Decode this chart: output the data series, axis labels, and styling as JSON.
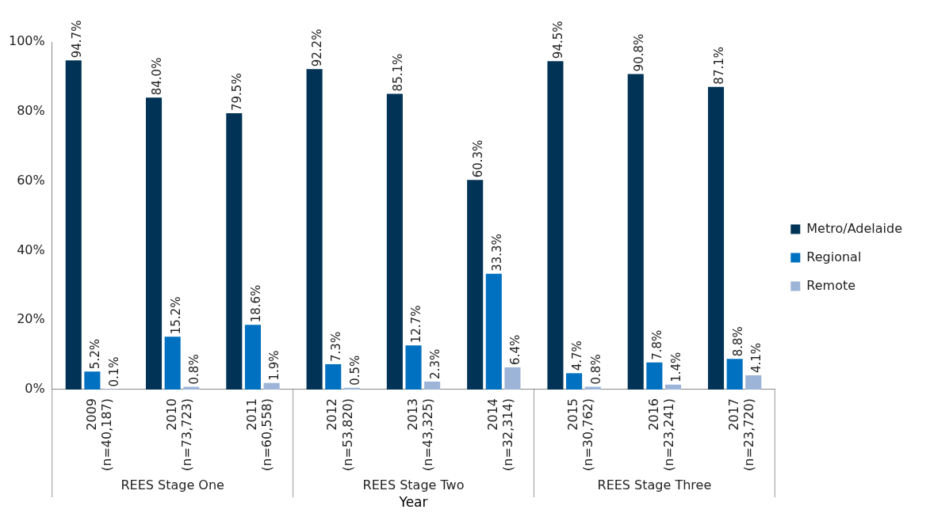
{
  "chart_data": {
    "type": "bar",
    "xlabel": "Year",
    "categories": [
      "2009\n(n=40,187)",
      "2010\n(n=73,723)",
      "2011\n(n=60,558)",
      "2012\n(n=53,820)",
      "2013\n(n=43,325)",
      "2014\n(n=32,314)",
      "2015\n(n=30,762)",
      "2016\n(n=23,241)",
      "2017\n(n=23,720)"
    ],
    "series": [
      {
        "name": "Metro/Adelaide",
        "color": "#003356",
        "values": [
          94.7,
          84.0,
          79.5,
          92.2,
          85.1,
          60.3,
          94.5,
          90.8,
          87.1
        ],
        "value_labels": [
          "94.7%",
          "84.0%",
          "79.5%",
          "92.2%",
          "85.1%",
          "60.3%",
          "94.5%",
          "90.8%",
          "87.1%"
        ]
      },
      {
        "name": "Regional",
        "color": "#0070c0",
        "values": [
          5.2,
          15.2,
          18.6,
          7.3,
          12.7,
          33.3,
          4.7,
          7.8,
          8.8
        ],
        "value_labels": [
          "5.2%",
          "15.2%",
          "18.6%",
          "7.3%",
          "12.7%",
          "33.3%",
          "4.7%",
          "7.8%",
          "8.8%"
        ]
      },
      {
        "name": "Remote",
        "color": "#9cb4d8",
        "values": [
          0.1,
          0.8,
          1.9,
          0.5,
          2.3,
          6.4,
          0.8,
          1.4,
          4.1
        ],
        "value_labels": [
          "0.1%",
          "0.8%",
          "1.9%",
          "0.5%",
          "2.3%",
          "6.4%",
          "0.8%",
          "1.4%",
          "4.1%"
        ]
      }
    ],
    "ylim": [
      0,
      100
    ],
    "yticks": [
      {
        "value": 0,
        "label": "0%"
      },
      {
        "value": 20,
        "label": "20%"
      },
      {
        "value": 40,
        "label": "40%"
      },
      {
        "value": 60,
        "label": "60%"
      },
      {
        "value": 80,
        "label": "80%"
      },
      {
        "value": 100,
        "label": "100%"
      }
    ],
    "grid": false,
    "legend": "right",
    "annotations": [
      "REES Stage One",
      "REES Stage Two",
      "REES Stage Three"
    ]
  }
}
